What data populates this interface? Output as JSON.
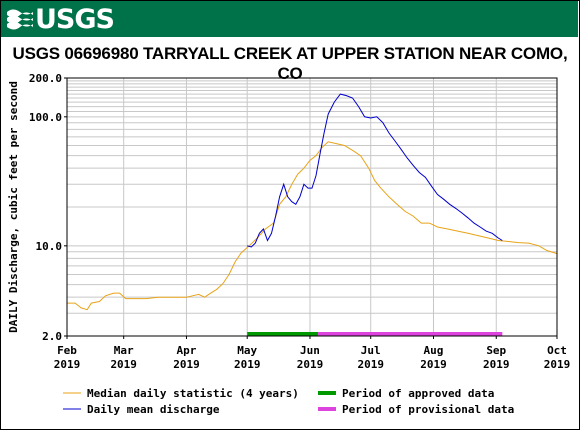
{
  "header": {
    "logo_text": "USGS"
  },
  "chart_data": {
    "type": "line",
    "title": "USGS 06696980 TARRYALL CREEK AT UPPER STATION NEAR COMO, CO",
    "ylabel": "DAILY Discharge, cubic feet per second",
    "xlabel": "",
    "y_scale": "log",
    "ylim": [
      2.0,
      200.0
    ],
    "y_ticks": [
      {
        "value": 200.0,
        "label": "200.0"
      },
      {
        "value": 100.0,
        "label": "100.0"
      },
      {
        "value": 10.0,
        "label": "10.0"
      },
      {
        "value": 2.0,
        "label": "2.0"
      }
    ],
    "xlim": [
      "2019-02-01",
      "2019-10-01"
    ],
    "x_ticks": [
      {
        "date": "2019-02-01",
        "month": "Feb",
        "year": "2019"
      },
      {
        "date": "2019-03-01",
        "month": "Mar",
        "year": "2019"
      },
      {
        "date": "2019-04-01",
        "month": "Apr",
        "year": "2019"
      },
      {
        "date": "2019-05-01",
        "month": "May",
        "year": "2019"
      },
      {
        "date": "2019-06-01",
        "month": "Jun",
        "year": "2019"
      },
      {
        "date": "2019-07-01",
        "month": "Jul",
        "year": "2019"
      },
      {
        "date": "2019-08-01",
        "month": "Aug",
        "year": "2019"
      },
      {
        "date": "2019-09-01",
        "month": "Sep",
        "year": "2019"
      },
      {
        "date": "2019-10-01",
        "month": "Oct",
        "year": "2019"
      }
    ],
    "grid": true,
    "legend_placement": "bottom",
    "series": [
      {
        "name": "Median daily statistic (4 years)",
        "color": "#e8a317",
        "points": [
          [
            "2019-02-01",
            3.6
          ],
          [
            "2019-02-05",
            3.6
          ],
          [
            "2019-02-08",
            3.3
          ],
          [
            "2019-02-11",
            3.2
          ],
          [
            "2019-02-13",
            3.6
          ],
          [
            "2019-02-17",
            3.7
          ],
          [
            "2019-02-20",
            4.1
          ],
          [
            "2019-02-24",
            4.3
          ],
          [
            "2019-02-27",
            4.3
          ],
          [
            "2019-03-02",
            3.9
          ],
          [
            "2019-03-07",
            3.9
          ],
          [
            "2019-03-12",
            3.9
          ],
          [
            "2019-03-18",
            4.0
          ],
          [
            "2019-03-26",
            4.0
          ],
          [
            "2019-04-01",
            4.0
          ],
          [
            "2019-04-04",
            4.1
          ],
          [
            "2019-04-07",
            4.2
          ],
          [
            "2019-04-10",
            4.0
          ],
          [
            "2019-04-13",
            4.3
          ],
          [
            "2019-04-16",
            4.6
          ],
          [
            "2019-04-19",
            5.1
          ],
          [
            "2019-04-22",
            6.0
          ],
          [
            "2019-04-25",
            7.5
          ],
          [
            "2019-04-28",
            8.8
          ],
          [
            "2019-05-02",
            10.0
          ],
          [
            "2019-05-06",
            11.5
          ],
          [
            "2019-05-10",
            13.5
          ],
          [
            "2019-05-14",
            15.0
          ],
          [
            "2019-05-17",
            21.0
          ],
          [
            "2019-05-20",
            24.0
          ],
          [
            "2019-05-23",
            30.0
          ],
          [
            "2019-05-26",
            36.0
          ],
          [
            "2019-05-29",
            40.0
          ],
          [
            "2019-06-01",
            46.0
          ],
          [
            "2019-06-04",
            50.0
          ],
          [
            "2019-06-07",
            58.0
          ],
          [
            "2019-06-10",
            64.0
          ],
          [
            "2019-06-14",
            62.0
          ],
          [
            "2019-06-18",
            60.0
          ],
          [
            "2019-06-22",
            55.0
          ],
          [
            "2019-06-26",
            50.0
          ],
          [
            "2019-06-30",
            40.0
          ],
          [
            "2019-07-03",
            32.0
          ],
          [
            "2019-07-06",
            28.0
          ],
          [
            "2019-07-10",
            24.0
          ],
          [
            "2019-07-14",
            21.0
          ],
          [
            "2019-07-18",
            18.5
          ],
          [
            "2019-07-22",
            17.0
          ],
          [
            "2019-07-26",
            15.0
          ],
          [
            "2019-07-30",
            15.0
          ],
          [
            "2019-08-03",
            14.0
          ],
          [
            "2019-08-08",
            13.5
          ],
          [
            "2019-08-13",
            13.0
          ],
          [
            "2019-08-18",
            12.5
          ],
          [
            "2019-08-23",
            12.0
          ],
          [
            "2019-08-28",
            11.5
          ],
          [
            "2019-09-02",
            11.0
          ],
          [
            "2019-09-07",
            10.8
          ],
          [
            "2019-09-12",
            10.6
          ],
          [
            "2019-09-17",
            10.5
          ],
          [
            "2019-09-22",
            10.0
          ],
          [
            "2019-09-26",
            9.2
          ],
          [
            "2019-10-01",
            8.7
          ]
        ]
      },
      {
        "name": "Daily mean discharge",
        "color": "#0000cc",
        "points": [
          [
            "2019-05-01",
            10.0
          ],
          [
            "2019-05-03",
            9.8
          ],
          [
            "2019-05-05",
            10.5
          ],
          [
            "2019-05-07",
            12.5
          ],
          [
            "2019-05-09",
            13.5
          ],
          [
            "2019-05-11",
            11.0
          ],
          [
            "2019-05-13",
            12.5
          ],
          [
            "2019-05-15",
            17.0
          ],
          [
            "2019-05-17",
            24.0
          ],
          [
            "2019-05-19",
            30.0
          ],
          [
            "2019-05-21",
            24.0
          ],
          [
            "2019-05-23",
            22.0
          ],
          [
            "2019-05-25",
            21.0
          ],
          [
            "2019-05-27",
            24.0
          ],
          [
            "2019-05-29",
            30.0
          ],
          [
            "2019-05-31",
            28.0
          ],
          [
            "2019-06-02",
            28.0
          ],
          [
            "2019-06-04",
            35.0
          ],
          [
            "2019-06-06",
            52.0
          ],
          [
            "2019-06-08",
            75.0
          ],
          [
            "2019-06-10",
            105.0
          ],
          [
            "2019-06-13",
            130.0
          ],
          [
            "2019-06-16",
            150.0
          ],
          [
            "2019-06-19",
            146.0
          ],
          [
            "2019-06-22",
            140.0
          ],
          [
            "2019-06-25",
            120.0
          ],
          [
            "2019-06-28",
            100.0
          ],
          [
            "2019-07-01",
            98.0
          ],
          [
            "2019-07-04",
            100.0
          ],
          [
            "2019-07-07",
            90.0
          ],
          [
            "2019-07-10",
            75.0
          ],
          [
            "2019-07-13",
            65.0
          ],
          [
            "2019-07-16",
            56.0
          ],
          [
            "2019-07-19",
            48.0
          ],
          [
            "2019-07-22",
            42.0
          ],
          [
            "2019-07-25",
            37.0
          ],
          [
            "2019-07-28",
            34.0
          ],
          [
            "2019-07-31",
            29.0
          ],
          [
            "2019-08-03",
            25.0
          ],
          [
            "2019-08-06",
            23.0
          ],
          [
            "2019-08-09",
            21.0
          ],
          [
            "2019-08-12",
            19.5
          ],
          [
            "2019-08-15",
            18.0
          ],
          [
            "2019-08-18",
            16.5
          ],
          [
            "2019-08-21",
            15.0
          ],
          [
            "2019-08-24",
            14.0
          ],
          [
            "2019-08-27",
            13.0
          ],
          [
            "2019-08-30",
            12.5
          ],
          [
            "2019-09-02",
            11.5
          ],
          [
            "2019-09-04",
            11.0
          ]
        ]
      }
    ],
    "periods": [
      {
        "name": "Period of approved data",
        "color": "#009900",
        "start": "2019-05-01",
        "end": "2019-06-05"
      },
      {
        "name": "Period of provisional data",
        "color": "#dd44dd",
        "start": "2019-06-05",
        "end": "2019-09-04"
      }
    ]
  }
}
